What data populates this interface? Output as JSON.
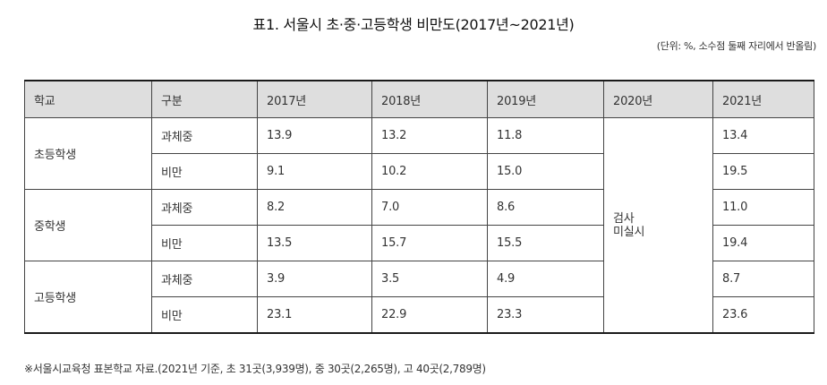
{
  "title": "표1. 서울시 초·중·고등학생 비만도(2017년~2021년)",
  "unit_note": "(단위: %, 소수점 둘째 자리에서 반올림)",
  "headers": [
    "학교",
    "구분",
    "2017년",
    "2018년",
    "2019년",
    "2020년",
    "2021년"
  ],
  "schools": [
    {
      "name": "초등학생",
      "rows": [
        {
          "type": "과체중",
          "y2017": "13.9",
          "y2018": "13.2",
          "y2019": "11.8",
          "y2021": "13.4"
        },
        {
          "type": "비만",
          "y2017": "9.1",
          "y2018": "10.2",
          "y2019": "15.0",
          "y2021": "19.5"
        }
      ]
    },
    {
      "name": "중학생",
      "rows": [
        {
          "type": "과체중",
          "y2017": "8.2",
          "y2018": "7.0",
          "y2019": "8.6",
          "y2021": "11.0"
        },
        {
          "type": "비만",
          "y2017": "13.5",
          "y2018": "15.7",
          "y2019": "15.5",
          "y2021": "19.4"
        }
      ]
    },
    {
      "name": "고등학생",
      "rows": [
        {
          "type": "과체중",
          "y2017": "3.9",
          "y2018": "3.5",
          "y2019": "4.9",
          "y2021": "8.7"
        },
        {
          "type": "비만",
          "y2017": "23.1",
          "y2018": "22.9",
          "y2019": "23.3",
          "y2021": "23.6"
        }
      ]
    }
  ],
  "not_surveyed_2020": [
    "검사",
    "미실시"
  ],
  "source_note": "※서울시교육청 표본학교 자료.(2021년 기준, 초 31곳(3,939명), 중 30곳(2,265명), 고 40곳(2,789명)"
}
